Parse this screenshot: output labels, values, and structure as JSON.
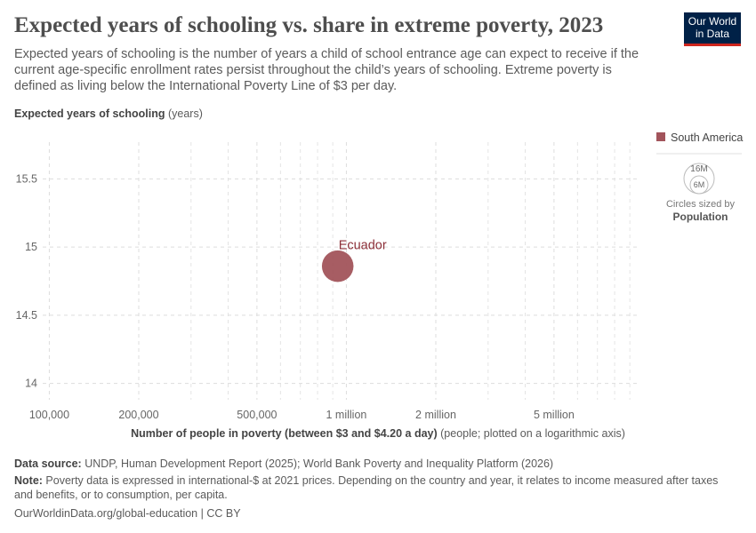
{
  "title": "Expected years of schooling vs. share in extreme poverty, 2023",
  "subtitle": "Expected years of schooling is the number of years a child of school entrance age can expect to receive if the current age-specific enrollment rates persist throughout the child’s years of schooling. Extreme poverty is defined as living below the International Poverty Line of $3 per day.",
  "logo": {
    "line1": "Our World",
    "line2": "in Data"
  },
  "chart_data": {
    "type": "scatter",
    "title": "Expected years of schooling vs. share in extreme poverty, 2023",
    "ylabel": {
      "bold": "Expected years of schooling",
      "unit": " (years)"
    },
    "xlabel": {
      "bold": "Number of people in poverty (between $3 and $4.20 a day)",
      "unit": " (people; plotted on a logarithmic axis)"
    },
    "x_scale": "log",
    "xlim": [
      95000,
      9500000
    ],
    "ylim": [
      13.88,
      15.77
    ],
    "x_ticks": [
      {
        "v": 100000,
        "label": "100,000"
      },
      {
        "v": 200000,
        "label": "200,000"
      },
      {
        "v": 500000,
        "label": "500,000"
      },
      {
        "v": 1000000,
        "label": "1 million"
      },
      {
        "v": 2000000,
        "label": "2 million"
      },
      {
        "v": 5000000,
        "label": "5 million"
      }
    ],
    "x_minor_grid": [
      300000,
      400000,
      600000,
      700000,
      800000,
      900000,
      3000000,
      4000000,
      6000000,
      7000000,
      8000000,
      9000000
    ],
    "y_ticks": [
      {
        "v": 14,
        "label": "14"
      },
      {
        "v": 14.5,
        "label": "14.5"
      },
      {
        "v": 15,
        "label": "15"
      },
      {
        "v": 15.5,
        "label": "15.5"
      }
    ],
    "grid": true,
    "legend": {
      "placement": "right",
      "entries": [
        {
          "name": "South America",
          "color": "#a2545b"
        }
      ]
    },
    "size_legend": {
      "labels": [
        "16M",
        "6M"
      ],
      "caption": "Circles sized by",
      "variable": "Population"
    },
    "points": [
      {
        "label": "Ecuador",
        "x": 935000,
        "y": 14.86,
        "population": 18000000,
        "color": "#a2545b",
        "label_color": "#8c2f38"
      }
    ]
  },
  "footer": {
    "source_label": "Data source:",
    "source": " UNDP, Human Development Report (2025); World Bank Poverty and Inequality Platform (2026)",
    "note_label": "Note:",
    "note": " Poverty data is expressed in international-$ at 2021 prices. Depending on the country and year, it relates to income measured after taxes and benefits, or to consumption, per capita.",
    "url": "OurWorldinData.org/global-education | CC BY"
  }
}
